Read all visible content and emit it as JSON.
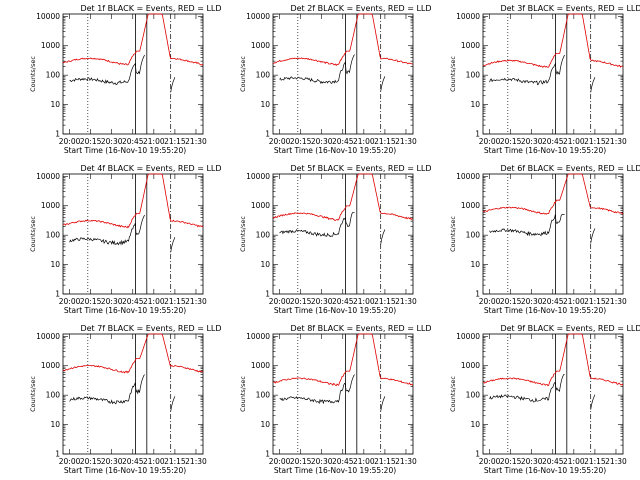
{
  "chart_data": [
    {
      "type": "line",
      "title": "Det 1f BLACK = Events, RED = LLD",
      "xlabel": "Start Time (16-Nov-10 19:55:20)",
      "ylabel": "Counts/sec",
      "yscale": "log",
      "ylim": [
        1,
        12000
      ],
      "xticks": [
        "20:00",
        "20:15",
        "20:30",
        "20:45",
        "21:00",
        "21:15",
        "21:30"
      ],
      "yticks": [
        "1",
        "10",
        "100",
        "1000",
        "10000"
      ],
      "series": [
        {
          "color": "#000000",
          "base": 65,
          "peak": 500
        },
        {
          "color": "#e00000",
          "base": 300,
          "peak": 12000
        }
      ]
    },
    {
      "type": "line",
      "title": "Det 2f BLACK = Events, RED = LLD",
      "xlabel": "Start Time (16-Nov-10 19:55:20)",
      "ylabel": "Counts/sec",
      "yscale": "log",
      "ylim": [
        1,
        12000
      ],
      "xticks": [
        "20:00",
        "20:15",
        "20:30",
        "20:45",
        "21:00",
        "21:15",
        "21:30"
      ],
      "yticks": [
        "1",
        "10",
        "100",
        "1000",
        "10000"
      ],
      "series": [
        {
          "color": "#000000",
          "base": 70,
          "peak": 500
        },
        {
          "color": "#e00000",
          "base": 300,
          "peak": 12000
        }
      ]
    },
    {
      "type": "line",
      "title": "Det 3f BLACK = Events, RED = LLD",
      "xlabel": "Start Time (16-Nov-10 19:55:20)",
      "ylabel": "Counts/sec",
      "yscale": "log",
      "ylim": [
        1,
        12000
      ],
      "xticks": [
        "20:00",
        "20:15",
        "20:30",
        "20:45",
        "21:00",
        "21:15",
        "21:30"
      ],
      "yticks": [
        "1",
        "10",
        "100",
        "1000",
        "10000"
      ],
      "series": [
        {
          "color": "#000000",
          "base": 65,
          "peak": 500
        },
        {
          "color": "#e00000",
          "base": 250,
          "peak": 12000
        }
      ]
    },
    {
      "type": "line",
      "title": "Det 4f BLACK = Events, RED = LLD",
      "xlabel": "Start Time (16-Nov-10 19:55:20)",
      "ylabel": "Counts/sec",
      "yscale": "log",
      "ylim": [
        1,
        12000
      ],
      "xticks": [
        "20:00",
        "20:15",
        "20:30",
        "20:45",
        "21:00",
        "21:15",
        "21:30"
      ],
      "yticks": [
        "1",
        "10",
        "100",
        "1000",
        "10000"
      ],
      "series": [
        {
          "color": "#000000",
          "base": 65,
          "peak": 500
        },
        {
          "color": "#e00000",
          "base": 250,
          "peak": 12000
        }
      ]
    },
    {
      "type": "line",
      "title": "Det 5f BLACK = Events, RED = LLD",
      "xlabel": "Start Time (16-Nov-10 19:55:20)",
      "ylabel": "Counts/sec",
      "yscale": "log",
      "ylim": [
        1,
        12000
      ],
      "xticks": [
        "20:00",
        "20:15",
        "20:30",
        "20:45",
        "21:00",
        "21:15",
        "21:30"
      ],
      "yticks": [
        "1",
        "10",
        "100",
        "1000",
        "10000"
      ],
      "series": [
        {
          "color": "#000000",
          "base": 120,
          "peak": 600
        },
        {
          "color": "#e00000",
          "base": 450,
          "peak": 12000
        }
      ]
    },
    {
      "type": "line",
      "title": "Det 6f BLACK = Events, RED = LLD",
      "xlabel": "Start Time (16-Nov-10 19:55:20)",
      "ylabel": "Counts/sec",
      "yscale": "log",
      "ylim": [
        1,
        12000
      ],
      "xticks": [
        "20:00",
        "20:15",
        "20:30",
        "20:45",
        "21:00",
        "21:15",
        "21:30"
      ],
      "yticks": [
        "1",
        "10",
        "100",
        "1000",
        "10000"
      ],
      "series": [
        {
          "color": "#000000",
          "base": 130,
          "peak": 500
        },
        {
          "color": "#e00000",
          "base": 700,
          "peak": 12000
        }
      ]
    },
    {
      "type": "line",
      "title": "Det 7f BLACK = Events, RED = LLD",
      "xlabel": "Start Time (16-Nov-10 19:55:20)",
      "ylabel": "Counts/sec",
      "yscale": "log",
      "ylim": [
        1,
        12000
      ],
      "xticks": [
        "20:00",
        "20:15",
        "20:30",
        "20:45",
        "21:00",
        "21:15",
        "21:30"
      ],
      "yticks": [
        "1",
        "10",
        "100",
        "1000",
        "10000"
      ],
      "series": [
        {
          "color": "#000000",
          "base": 70,
          "peak": 500
        },
        {
          "color": "#e00000",
          "base": 800,
          "peak": 12000
        }
      ]
    },
    {
      "type": "line",
      "title": "Det 8f BLACK = Events, RED = LLD",
      "xlabel": "Start Time (16-Nov-10 19:55:20)",
      "ylabel": "Counts/sec",
      "yscale": "log",
      "ylim": [
        1,
        12000
      ],
      "xticks": [
        "20:00",
        "20:15",
        "20:30",
        "20:45",
        "21:00",
        "21:15",
        "21:30"
      ],
      "yticks": [
        "1",
        "10",
        "100",
        "1000",
        "10000"
      ],
      "series": [
        {
          "color": "#000000",
          "base": 70,
          "peak": 500
        },
        {
          "color": "#e00000",
          "base": 300,
          "peak": 12000
        }
      ]
    },
    {
      "type": "line",
      "title": "Det 9f BLACK = Events, RED = LLD",
      "xlabel": "Start Time (16-Nov-10 19:55:20)",
      "ylabel": "Counts/sec",
      "yscale": "log",
      "ylim": [
        1,
        12000
      ],
      "xticks": [
        "20:00",
        "20:15",
        "20:30",
        "20:45",
        "21:00",
        "21:15",
        "21:30"
      ],
      "yticks": [
        "1",
        "10",
        "100",
        "1000",
        "10000"
      ],
      "series": [
        {
          "color": "#000000",
          "base": 80,
          "peak": 500
        },
        {
          "color": "#e00000",
          "base": 300,
          "peak": 12000
        }
      ]
    }
  ]
}
